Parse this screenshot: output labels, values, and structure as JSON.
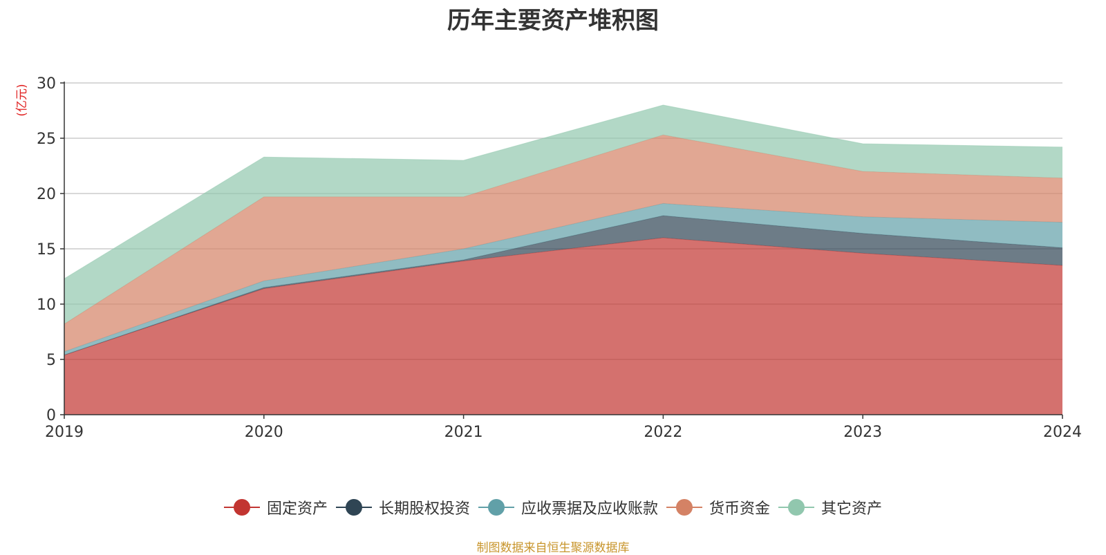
{
  "chart_data": {
    "type": "area",
    "stacked": true,
    "title": "历年主要资产堆积图",
    "y_unit": "(亿元)",
    "x": [
      "2019",
      "2020",
      "2021",
      "2022",
      "2023",
      "2024"
    ],
    "ylim": [
      0,
      30
    ],
    "y_ticks": [
      "0",
      "5",
      "10",
      "15",
      "20",
      "25",
      "30"
    ],
    "grid": true,
    "legend_position": "bottom",
    "series": [
      {
        "name": "固定资产",
        "color": "#c23531",
        "values": [
          5.4,
          11.4,
          13.9,
          16.0,
          14.6,
          13.5
        ]
      },
      {
        "name": "长期股权投资",
        "color": "#2f4554",
        "values": [
          0.0,
          0.1,
          0.1,
          2.0,
          1.8,
          1.6
        ]
      },
      {
        "name": "应收票据及应收账款",
        "color": "#61a0a8",
        "values": [
          0.3,
          0.6,
          1.0,
          1.1,
          1.5,
          2.3
        ]
      },
      {
        "name": "货币资金",
        "color": "#d48265",
        "values": [
          2.5,
          7.6,
          4.7,
          6.2,
          4.1,
          4.0
        ]
      },
      {
        "name": "其它资产",
        "color": "#91c7ae",
        "values": [
          4.1,
          3.6,
          3.3,
          2.7,
          2.5,
          2.8
        ]
      }
    ]
  },
  "footer": "制图数据来自恒生聚源数据库"
}
